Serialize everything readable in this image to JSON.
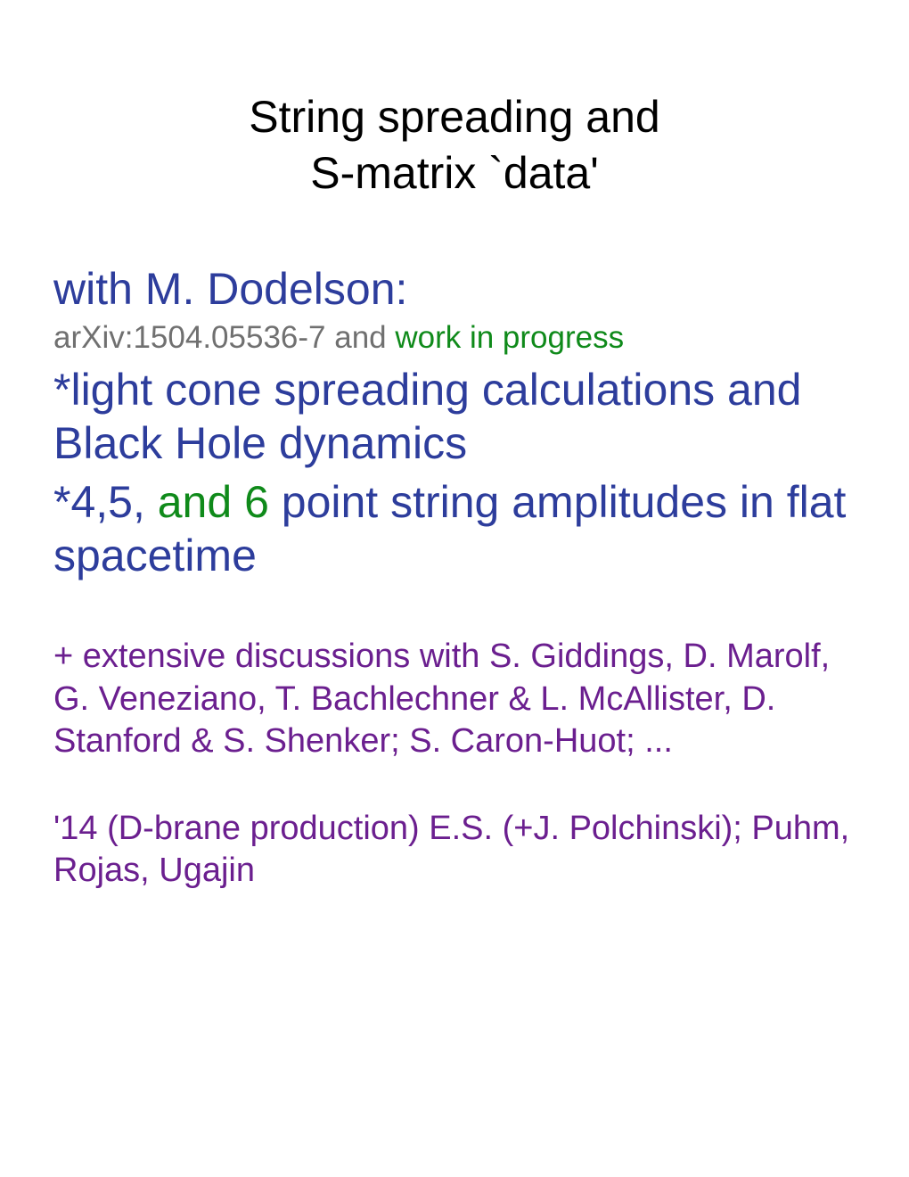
{
  "title": {
    "line1": "String spreading and",
    "line2": "S-matrix `data'"
  },
  "author": "with M. Dodelson:",
  "arxiv": {
    "ref": "arXiv:1504.05536-7 and ",
    "wip": "work in progress"
  },
  "bullet1": "*light cone spreading calculations and Black Hole dynamics",
  "bullet2": {
    "pre": "*4,5, ",
    "green": "and 6",
    "post": " point string amplitudes in flat spacetime"
  },
  "discussions": "+ extensive discussions with S. Giddings, D. Marolf,  G. Veneziano, T. Bachlechner & L. McAllister, D. Stanford & S. Shenker; S. Caron-Huot; ...",
  "dbrane": "'14 (D-brane production)  E.S. (+J. Polchinski); Puhm, Rojas, Ugajin",
  "colors": {
    "black": "#000000",
    "blue": "#2d3d9c",
    "gray": "#707070",
    "green": "#0f8a1a",
    "purple": "#6b1f8f",
    "background": "#ffffff"
  },
  "fonts": {
    "title_size": 50,
    "author_size": 50,
    "arxiv_size": 35,
    "bullet_size": 50,
    "discussions_size": 38
  }
}
